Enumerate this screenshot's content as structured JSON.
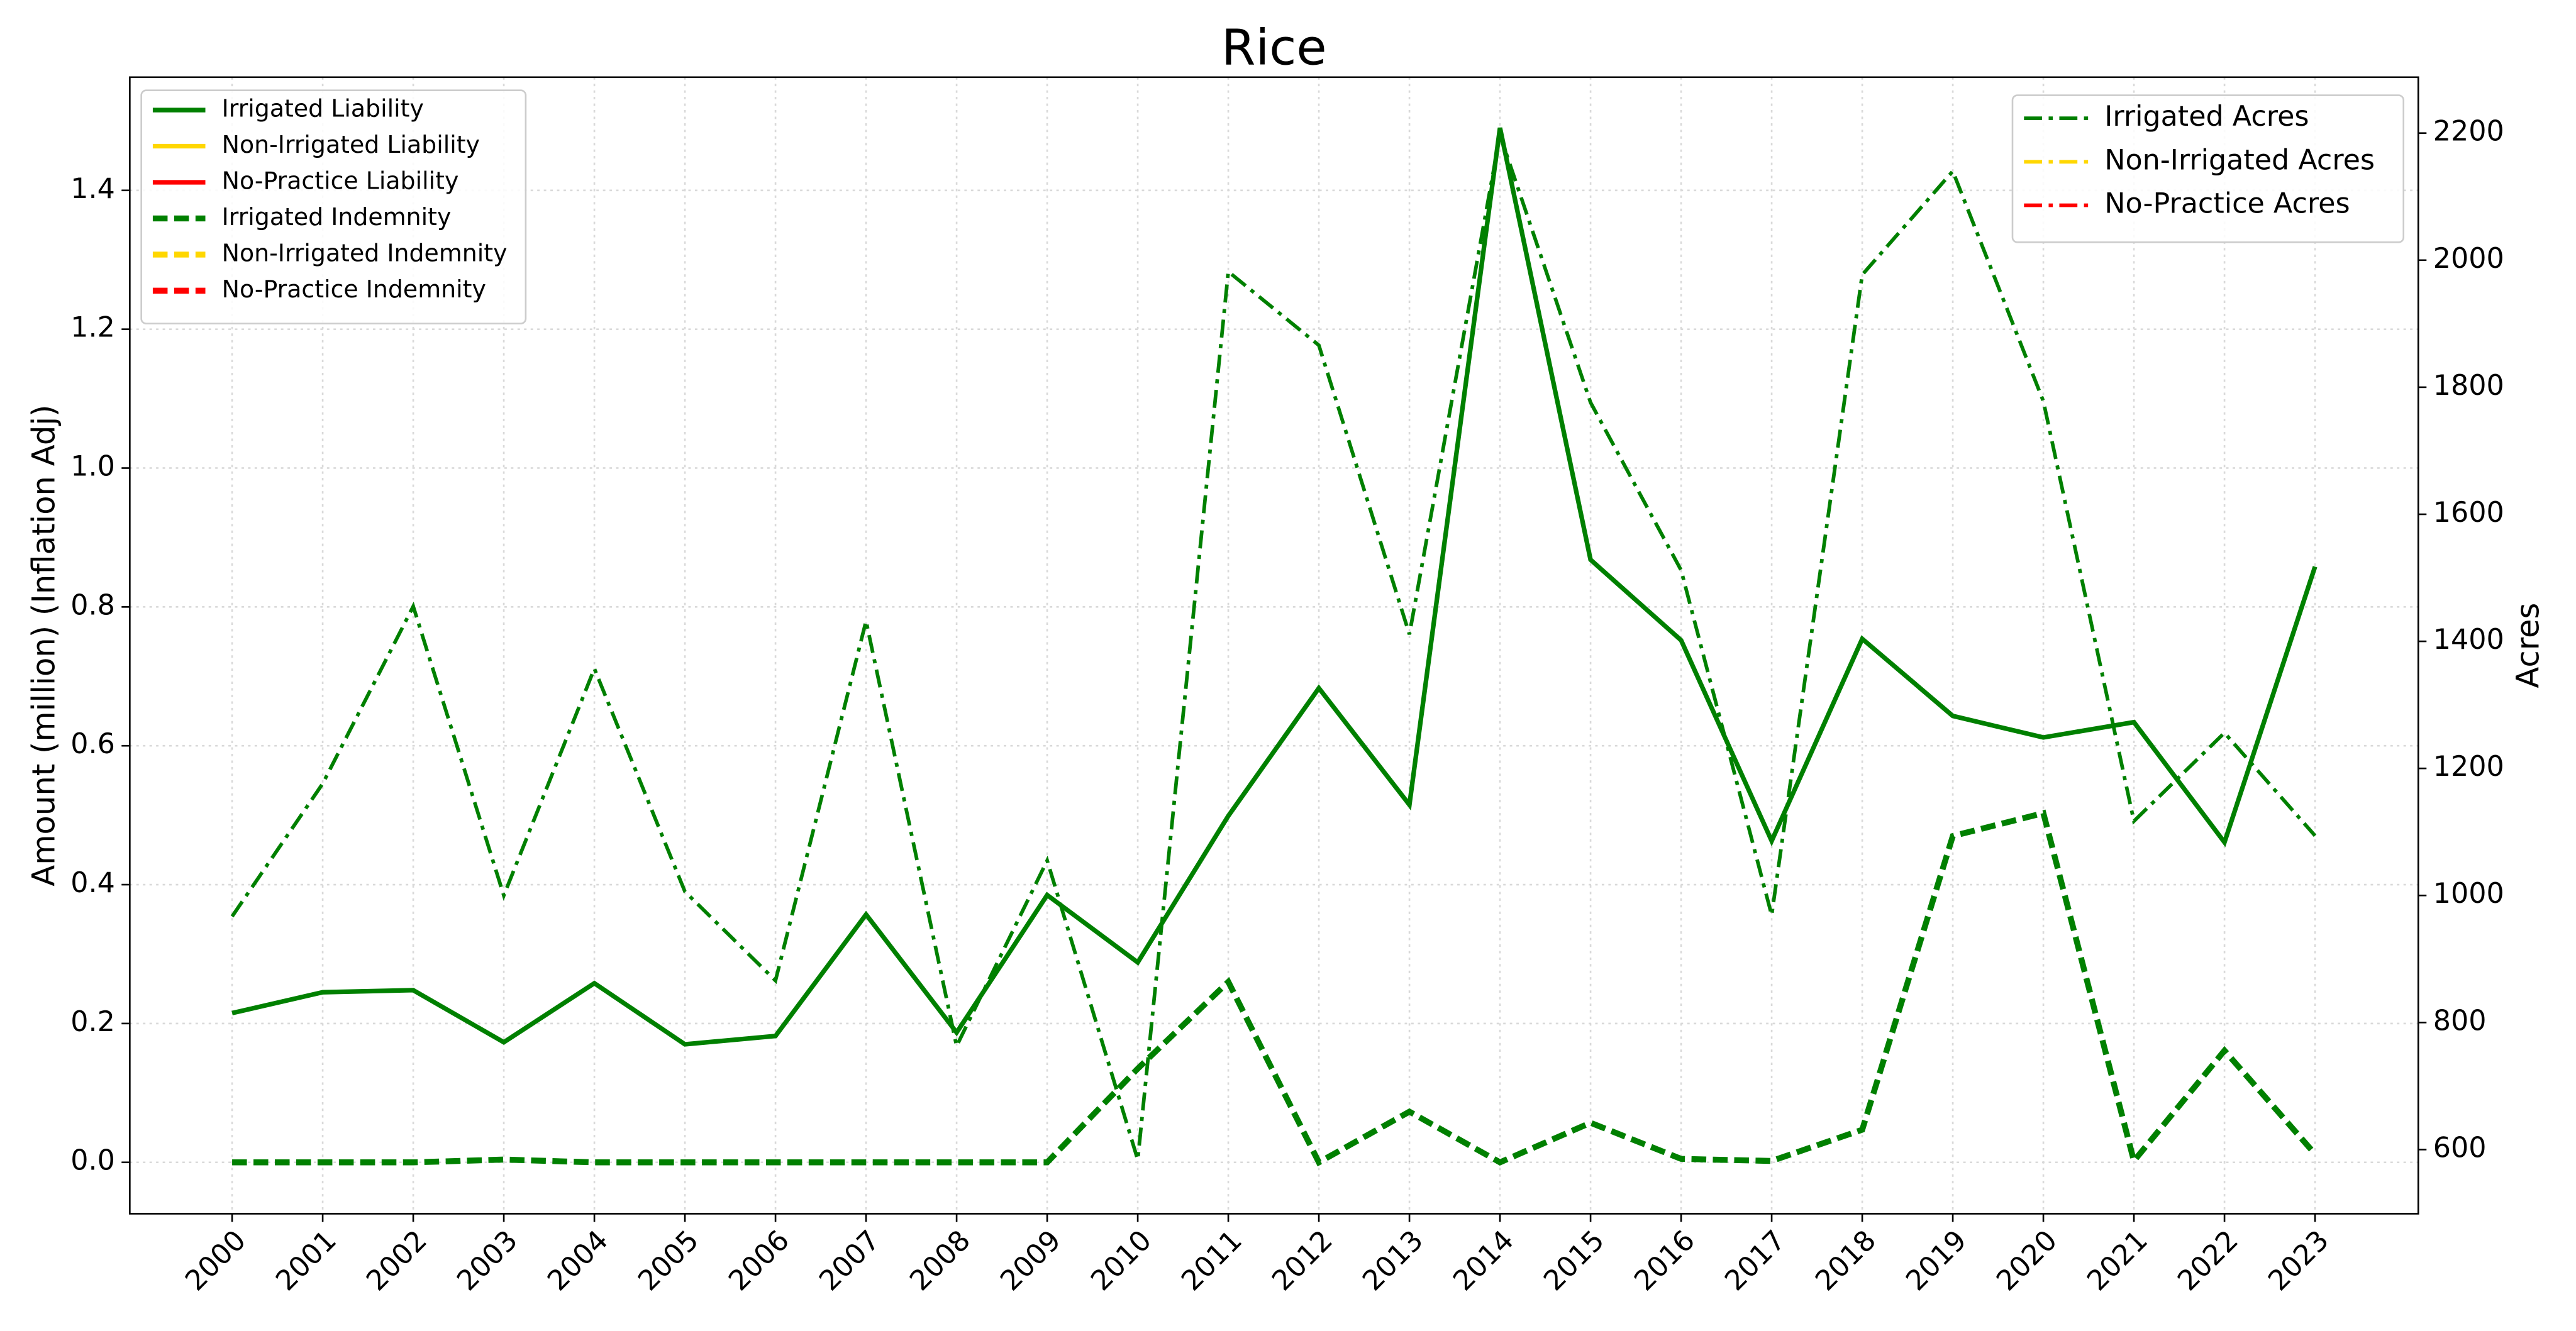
{
  "chart_data": {
    "type": "line",
    "title": "Rice",
    "y_label": "Amount (million) (Inflation Adj)",
    "y2_label": "Acres",
    "x": [
      2000,
      2001,
      2002,
      2003,
      2004,
      2005,
      2006,
      2007,
      2008,
      2009,
      2010,
      2011,
      2012,
      2013,
      2014,
      2015,
      2016,
      2017,
      2018,
      2019,
      2020,
      2021,
      2022,
      2023
    ],
    "xlim": [
      1998.87,
      2024.14
    ],
    "xticks": [
      2000,
      2001,
      2002,
      2003,
      2004,
      2005,
      2006,
      2007,
      2008,
      2009,
      2010,
      2011,
      2012,
      2013,
      2014,
      2015,
      2016,
      2017,
      2018,
      2019,
      2020,
      2021,
      2022,
      2023
    ],
    "ylim": [
      -0.074,
      1.563
    ],
    "yticks": [
      {
        "value": 0,
        "label": "0.0"
      },
      0.2,
      0.4,
      0.6,
      0.8,
      {
        "value": 1,
        "label": "1.0"
      },
      1.2,
      1.4
    ],
    "y2lim": [
      499,
      2288
    ],
    "y2ticks": [
      600,
      800,
      1000,
      1200,
      1400,
      1600,
      1800,
      2000,
      2200
    ],
    "grid": true,
    "legend": {
      "y": "upper left",
      "y2": "upper right"
    },
    "series": [
      {
        "name": "Irrigated Liability",
        "color": "#008000",
        "linestyle": "solid",
        "axis": "y",
        "values": [
          0.215,
          0.245,
          0.248,
          0.173,
          0.258,
          0.17,
          0.182,
          0.357,
          0.187,
          0.385,
          0.288,
          0.499,
          0.683,
          0.515,
          1.49,
          0.868,
          0.752,
          0.463,
          0.754,
          0.643,
          0.612,
          0.634,
          0.461,
          0.858
        ]
      },
      {
        "name": "Non-Irrigated Liability",
        "color": "#ffd700",
        "linestyle": "solid",
        "axis": "y",
        "values": [
          null,
          null,
          null,
          null,
          null,
          null,
          null,
          null,
          null,
          null,
          null,
          null,
          null,
          null,
          null,
          null,
          null,
          null,
          null,
          null,
          null,
          null,
          null,
          null
        ]
      },
      {
        "name": "No-Practice Liability",
        "color": "#ff0000",
        "linestyle": "solid",
        "axis": "y",
        "values": [
          null,
          null,
          null,
          null,
          null,
          null,
          null,
          null,
          null,
          null,
          null,
          null,
          null,
          null,
          null,
          null,
          null,
          null,
          null,
          null,
          null,
          null,
          null,
          null
        ]
      },
      {
        "name": "Irrigated Indemnity",
        "color": "#008000",
        "linestyle": "dashed",
        "axis": "y",
        "values": [
          0,
          0,
          0,
          0.004,
          0,
          0,
          0,
          0,
          0,
          0,
          0.135,
          0.26,
          0,
          0.073,
          0,
          0.057,
          0.005,
          0.002,
          0.047,
          0.47,
          0.503,
          0.002,
          0.161,
          0.012
        ]
      },
      {
        "name": "Non-Irrigated Indemnity",
        "color": "#ffd700",
        "linestyle": "dashed",
        "axis": "y",
        "values": [
          null,
          null,
          null,
          null,
          null,
          null,
          null,
          null,
          null,
          null,
          null,
          null,
          null,
          null,
          null,
          null,
          null,
          null,
          null,
          null,
          null,
          null,
          null,
          null
        ]
      },
      {
        "name": "No-Practice Indemnity",
        "color": "#ff0000",
        "linestyle": "dashed",
        "axis": "y",
        "values": [
          null,
          null,
          null,
          null,
          null,
          null,
          null,
          null,
          null,
          null,
          null,
          null,
          null,
          null,
          null,
          null,
          null,
          null,
          null,
          null,
          null,
          null,
          null,
          null
        ]
      },
      {
        "name": "Irrigated Acres",
        "color": "#008000",
        "linestyle": "dashdot",
        "axis": "y2",
        "values": [
          967,
          1176,
          1455,
          1000,
          1357,
          1006,
          866,
          1432,
          763,
          1055,
          584,
          1982,
          1866,
          1411,
          2197,
          1776,
          1512,
          969,
          1977,
          2140,
          1778,
          1117,
          1256,
          1094
        ]
      },
      {
        "name": "Non-Irrigated Acres",
        "color": "#ffd700",
        "linestyle": "dashdot",
        "axis": "y2",
        "values": [
          null,
          null,
          null,
          null,
          null,
          null,
          null,
          null,
          null,
          null,
          null,
          null,
          null,
          null,
          null,
          null,
          null,
          null,
          null,
          null,
          null,
          null,
          null,
          null
        ]
      },
      {
        "name": "No-Practice Acres",
        "color": "#ff0000",
        "linestyle": "dashdot",
        "axis": "y2",
        "values": [
          null,
          null,
          null,
          null,
          null,
          null,
          null,
          null,
          null,
          null,
          null,
          null,
          null,
          null,
          null,
          null,
          null,
          null,
          null,
          null,
          null,
          null,
          null,
          null
        ]
      }
    ]
  }
}
